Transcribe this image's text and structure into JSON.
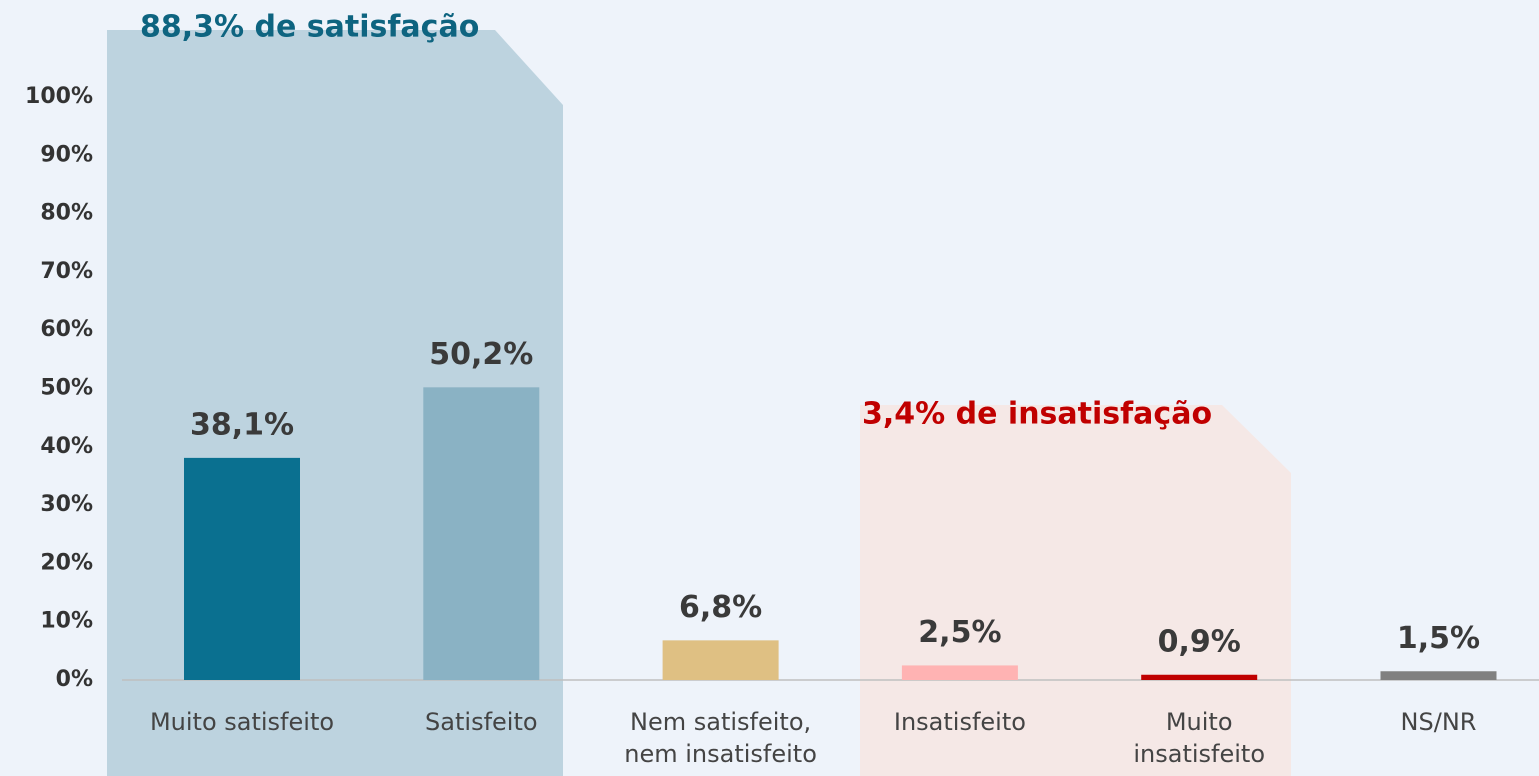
{
  "chart_data": {
    "type": "bar",
    "categories": [
      "Muito satisfeito",
      "Satisfeito",
      "Nem satisfeito,\nnem insatisfeito",
      "Insatisfeito",
      "Muito\ninsatisfeito",
      "NS/NR"
    ],
    "values": [
      38.1,
      50.2,
      6.8,
      2.5,
      0.9,
      1.5
    ],
    "value_labels": [
      "38,1%",
      "50,2%",
      "6,8%",
      "2,5%",
      "0,9%",
      "1,5%"
    ],
    "colors": [
      "#0a7090",
      "#8ab2c4",
      "#dfc083",
      "#ffb3b3",
      "#c00000",
      "#808080"
    ],
    "ylim": [
      0,
      100
    ],
    "yticks": [
      {
        "value": 0,
        "label": "0%"
      },
      {
        "value": 10,
        "label": "10%"
      },
      {
        "value": 20,
        "label": "20%"
      },
      {
        "value": 30,
        "label": "30%"
      },
      {
        "value": 40,
        "label": "40%"
      },
      {
        "value": 50,
        "label": "50%"
      },
      {
        "value": 60,
        "label": "60%"
      },
      {
        "value": 70,
        "label": "70%"
      },
      {
        "value": 80,
        "label": "80%"
      },
      {
        "value": 90,
        "label": "90%"
      },
      {
        "value": 100,
        "label": "100%"
      }
    ],
    "grid": false,
    "annotations": [
      {
        "text": "88,3% de satisfação",
        "color": "#0e6480"
      },
      {
        "text": "3,4% de insatisfação",
        "color": "#c00000"
      }
    ]
  }
}
